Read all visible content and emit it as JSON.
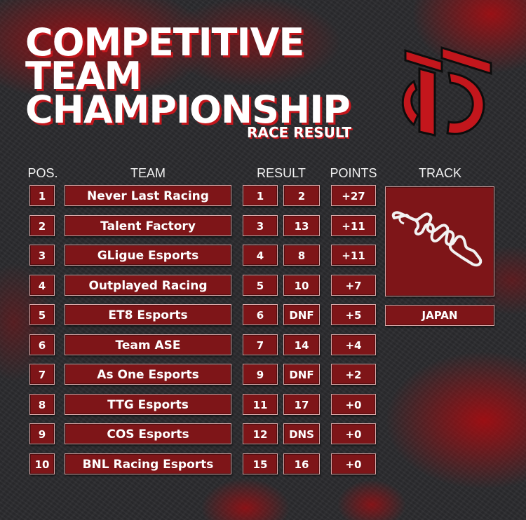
{
  "header": {
    "title_line1": "COMPETITIVE",
    "title_line2": "TEAM",
    "title_line3": "CHAMPIONSHIP",
    "subtitle": "RACE RESULT"
  },
  "columns": {
    "pos": "POS.",
    "team": "TEAM",
    "result": "RESULT",
    "points": "POINTS",
    "track": "TRACK"
  },
  "rows": [
    {
      "pos": "1",
      "team": "Never Last Racing",
      "result1": "1",
      "result2": "2",
      "points": "+27"
    },
    {
      "pos": "2",
      "team": "Talent Factory",
      "result1": "3",
      "result2": "13",
      "points": "+11"
    },
    {
      "pos": "3",
      "team": "GLigue Esports",
      "result1": "4",
      "result2": "8",
      "points": "+11"
    },
    {
      "pos": "4",
      "team": "Outplayed Racing",
      "result1": "5",
      "result2": "10",
      "points": "+7"
    },
    {
      "pos": "5",
      "team": "ET8 Esports",
      "result1": "6",
      "result2": "DNF",
      "points": "+5"
    },
    {
      "pos": "6",
      "team": "Team ASE",
      "result1": "7",
      "result2": "14",
      "points": "+4"
    },
    {
      "pos": "7",
      "team": "As One Esports",
      "result1": "9",
      "result2": "DNF",
      "points": "+2"
    },
    {
      "pos": "8",
      "team": "TTG Esports",
      "result1": "11",
      "result2": "17",
      "points": "+0"
    },
    {
      "pos": "9",
      "team": "COS Esports",
      "result1": "12",
      "result2": "DNS",
      "points": "+0"
    },
    {
      "pos": "10",
      "team": "BNL Racing Esports",
      "result1": "15",
      "result2": "16",
      "points": "+0"
    }
  ],
  "track": {
    "name": "JAPAN",
    "icon": "circuit-map-icon"
  },
  "colors": {
    "accent": "#c3161c",
    "cell": "#7e1518",
    "border": "#d9a7a7"
  }
}
